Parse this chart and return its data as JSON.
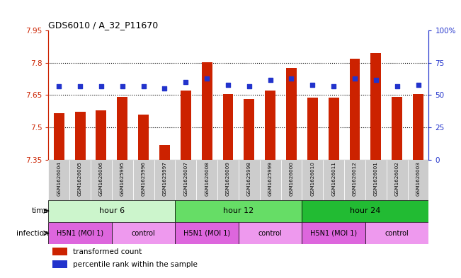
{
  "title": "GDS6010 / A_32_P11670",
  "samples": [
    "GSM1626004",
    "GSM1626005",
    "GSM1626006",
    "GSM1625995",
    "GSM1625996",
    "GSM1625997",
    "GSM1626007",
    "GSM1626008",
    "GSM1626009",
    "GSM1625998",
    "GSM1625999",
    "GSM1626000",
    "GSM1626010",
    "GSM1626011",
    "GSM1626012",
    "GSM1626001",
    "GSM1626002",
    "GSM1626003"
  ],
  "red_values": [
    7.566,
    7.574,
    7.58,
    7.643,
    7.56,
    7.418,
    7.672,
    7.802,
    7.656,
    7.63,
    7.672,
    7.775,
    7.637,
    7.637,
    7.818,
    7.845,
    7.643,
    7.656
  ],
  "blue_values": [
    57,
    57,
    57,
    57,
    57,
    55,
    60,
    63,
    58,
    57,
    62,
    63,
    58,
    57,
    63,
    62,
    57,
    58
  ],
  "ymin": 7.35,
  "ymax": 7.95,
  "yticks": [
    7.35,
    7.5,
    7.65,
    7.8,
    7.95
  ],
  "ytick_labels": [
    "7.35",
    "7.5",
    "7.65",
    "7.8",
    "7.95"
  ],
  "y2min": 0,
  "y2max": 100,
  "y2ticks": [
    0,
    25,
    50,
    75,
    100
  ],
  "y2tick_labels": [
    "0",
    "25",
    "50",
    "75",
    "100%"
  ],
  "bar_color": "#cc2200",
  "dot_color": "#2233cc",
  "axis_color_left": "#cc2200",
  "axis_color_right": "#2233cc",
  "bar_width": 0.5,
  "time_colors": [
    "#ccf5cc",
    "#66dd66",
    "#22bb33"
  ],
  "time_labels": [
    "hour 6",
    "hour 12",
    "hour 24"
  ],
  "time_starts": [
    0,
    6,
    12
  ],
  "time_ends": [
    6,
    12,
    18
  ],
  "inf_groups": [
    [
      0,
      3,
      "#dd66dd",
      "H5N1 (MOI 1)"
    ],
    [
      3,
      6,
      "#ee99ee",
      "control"
    ],
    [
      6,
      9,
      "#dd66dd",
      "H5N1 (MOI 1)"
    ],
    [
      9,
      12,
      "#ee99ee",
      "control"
    ],
    [
      12,
      15,
      "#dd66dd",
      "H5N1 (MOI 1)"
    ],
    [
      15,
      18,
      "#ee99ee",
      "control"
    ]
  ],
  "legend_items": [
    {
      "label": "transformed count",
      "color": "#cc2200"
    },
    {
      "label": "percentile rank within the sample",
      "color": "#2233cc"
    }
  ],
  "bg_color": "#ffffff",
  "sample_bg_color": "#cccccc"
}
